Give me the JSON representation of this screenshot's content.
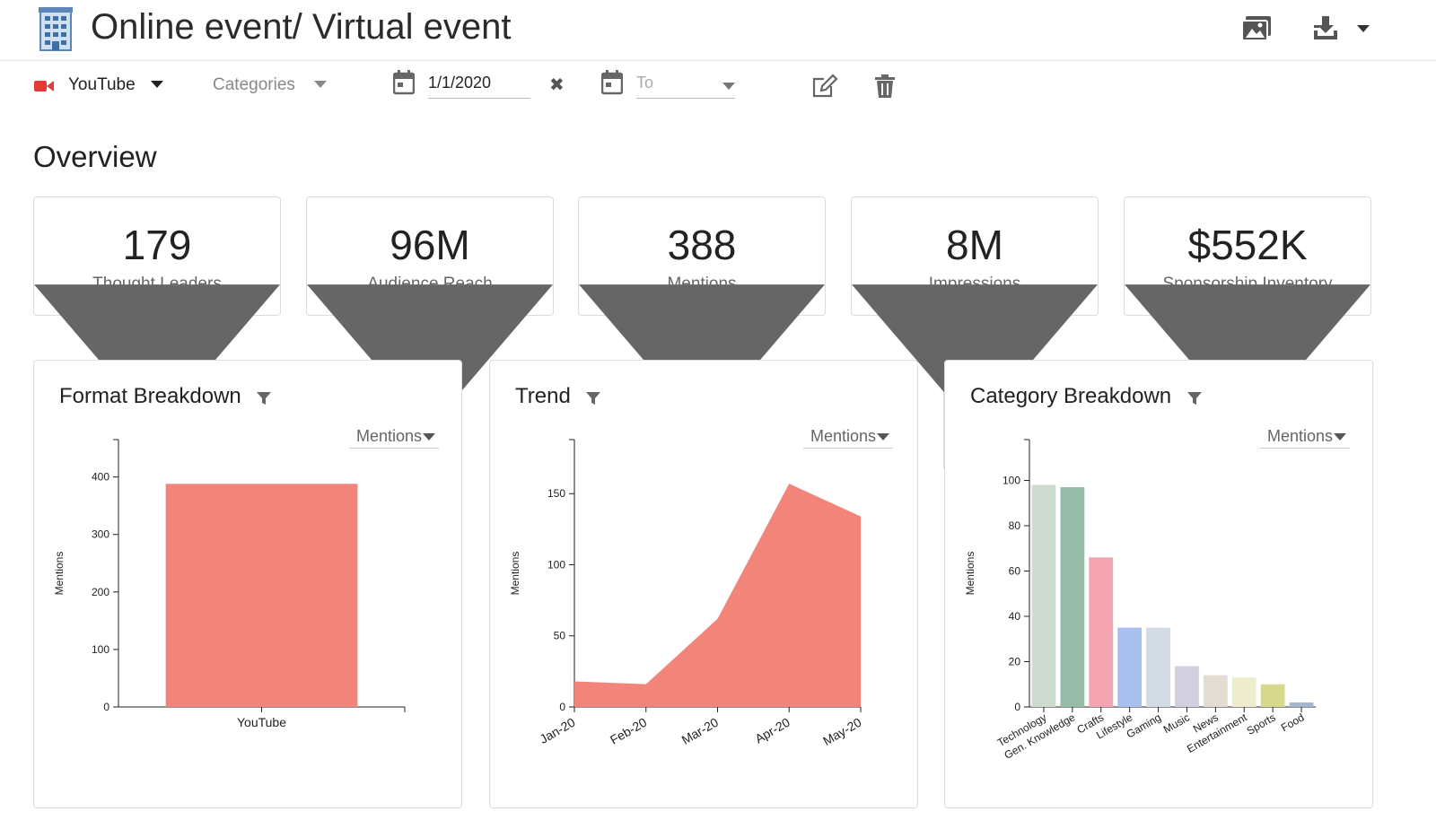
{
  "header": {
    "title": "Online event/ Virtual event",
    "icons": {
      "building": "building-icon",
      "images": "images-icon",
      "download": "download-icon"
    }
  },
  "filters": {
    "source": {
      "label": "YouTube",
      "icon": "video-camera-icon",
      "color": "#e53935"
    },
    "categories": {
      "placeholder": "Categories"
    },
    "date_from": {
      "value": "1/1/2020"
    },
    "date_to": {
      "placeholder": "To"
    }
  },
  "overview": {
    "title": "Overview",
    "kpis": [
      {
        "value": "179",
        "label": "Thought Leaders"
      },
      {
        "value": "96M",
        "label": "Audience Reach"
      },
      {
        "value": "388",
        "label": "Mentions"
      },
      {
        "value": "8M",
        "label": "Impressions"
      },
      {
        "value": "$552K",
        "label": "Sponsorship Inventory"
      }
    ]
  },
  "panels": {
    "format": {
      "title": "Format Breakdown",
      "metric": "Mentions"
    },
    "trend": {
      "title": "Trend",
      "metric": "Mentions"
    },
    "category": {
      "title": "Category Breakdown",
      "metric": "Mentions"
    }
  },
  "colors": {
    "accent": "#f28479",
    "text": "#222222",
    "border": "#dcdcdc"
  },
  "chart_data": [
    {
      "type": "bar",
      "ylabel": "Mentions",
      "xlabel": "",
      "categories": [
        "YouTube"
      ],
      "values": [
        388
      ],
      "ylim": [
        0,
        465
      ],
      "yticks": [
        0,
        100,
        200,
        300,
        400
      ],
      "color": "#f28479"
    },
    {
      "type": "area",
      "ylabel": "Mentions",
      "xlabel": "",
      "x": [
        "Jan-20",
        "Feb-20",
        "Mar-20",
        "Apr-20",
        "May-20"
      ],
      "values": [
        18,
        16,
        62,
        157,
        134
      ],
      "ylim": [
        0,
        188
      ],
      "yticks": [
        0,
        50,
        100,
        150
      ],
      "color": "#f28479"
    },
    {
      "type": "bar",
      "ylabel": "Mentions",
      "xlabel": "",
      "categories": [
        "Technology",
        "Gen. Knowledge",
        "Crafts",
        "Lifestyle",
        "Gaming",
        "Music",
        "News",
        "Entertainment",
        "Sports",
        "Food"
      ],
      "values": [
        98,
        97,
        66,
        35,
        35,
        18,
        14,
        13,
        10,
        2
      ],
      "ylim": [
        0,
        118
      ],
      "yticks": [
        0,
        20,
        40,
        60,
        80,
        100
      ],
      "colors": [
        "#cddccf",
        "#95bca6",
        "#f3a4b0",
        "#a8bfef",
        "#d3dbe5",
        "#d2d0df",
        "#e3dcd2",
        "#eeeccf",
        "#d6d98c",
        "#a5b6cf"
      ]
    }
  ]
}
